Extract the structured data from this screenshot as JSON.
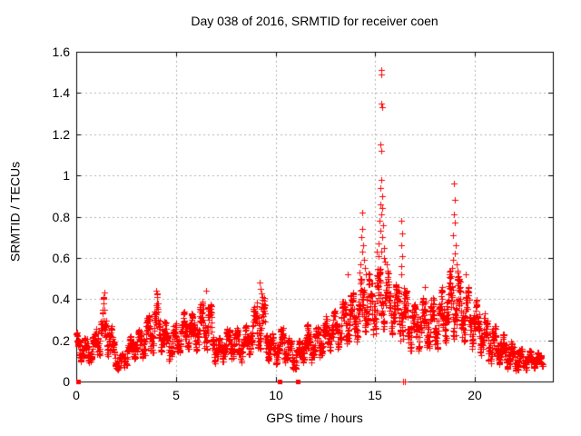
{
  "chart_data": {
    "type": "scatter",
    "title": "Day 038 of 2016, SRMTID for receiver coen",
    "xlabel": "GPS time / hours",
    "ylabel": "SRMTID / TECUs",
    "xlim": [
      0,
      23.9
    ],
    "ylim": [
      0,
      1.6
    ],
    "xticks": [
      0,
      5,
      10,
      15,
      20
    ],
    "yticks": [
      0,
      0.2,
      0.4,
      0.6,
      0.8,
      1,
      1.2,
      1.4,
      1.6
    ],
    "xtick_labels": [
      "0",
      "5",
      "10",
      "15",
      "20"
    ],
    "ytick_labels": [
      "0",
      "0.2",
      "0.4",
      "0.6",
      "0.8",
      "1",
      "1.2",
      "1.4",
      "1.6"
    ],
    "grid": true,
    "legend": "none",
    "marker": {
      "shape": "plus",
      "size": 7,
      "color": "#ff0000"
    },
    "colors": {
      "points": "#ff0000",
      "grid": "#b0b0b0",
      "axis": "#000000",
      "text": "#000000"
    },
    "sampling_per_hour": 120,
    "band_envelope": [
      [
        0.0,
        0.3,
        0.1,
        0.24
      ],
      [
        0.3,
        0.6,
        0.09,
        0.21
      ],
      [
        0.6,
        0.9,
        0.09,
        0.22
      ],
      [
        0.9,
        1.2,
        0.11,
        0.27
      ],
      [
        1.2,
        1.5,
        0.13,
        0.42
      ],
      [
        1.5,
        1.8,
        0.12,
        0.33
      ],
      [
        1.8,
        2.1,
        0.06,
        0.18
      ],
      [
        2.1,
        2.4,
        0.04,
        0.13
      ],
      [
        2.4,
        2.7,
        0.08,
        0.2
      ],
      [
        2.7,
        3.0,
        0.11,
        0.24
      ],
      [
        3.0,
        3.3,
        0.1,
        0.26
      ],
      [
        3.3,
        3.6,
        0.12,
        0.3
      ],
      [
        3.6,
        3.9,
        0.13,
        0.35
      ],
      [
        3.9,
        4.2,
        0.15,
        0.43
      ],
      [
        4.2,
        4.5,
        0.12,
        0.32
      ],
      [
        4.5,
        4.8,
        0.1,
        0.26
      ],
      [
        4.8,
        5.1,
        0.12,
        0.28
      ],
      [
        5.1,
        5.4,
        0.14,
        0.31
      ],
      [
        5.4,
        5.7,
        0.16,
        0.38
      ],
      [
        5.7,
        6.0,
        0.14,
        0.33
      ],
      [
        6.0,
        6.3,
        0.15,
        0.36
      ],
      [
        6.3,
        6.6,
        0.16,
        0.42
      ],
      [
        6.6,
        6.9,
        0.13,
        0.38
      ],
      [
        6.9,
        7.2,
        0.07,
        0.2
      ],
      [
        7.2,
        7.5,
        0.09,
        0.24
      ],
      [
        7.5,
        7.8,
        0.11,
        0.27
      ],
      [
        7.8,
        8.1,
        0.11,
        0.28
      ],
      [
        8.1,
        8.4,
        0.09,
        0.23
      ],
      [
        8.4,
        8.7,
        0.11,
        0.28
      ],
      [
        8.7,
        9.0,
        0.14,
        0.34
      ],
      [
        9.0,
        9.3,
        0.16,
        0.47
      ],
      [
        9.3,
        9.6,
        0.13,
        0.4
      ],
      [
        9.6,
        9.9,
        0.08,
        0.24
      ],
      [
        9.9,
        10.2,
        0.08,
        0.22
      ],
      [
        10.2,
        10.5,
        0.1,
        0.29
      ],
      [
        10.5,
        10.8,
        0.07,
        0.24
      ],
      [
        10.8,
        11.1,
        0.05,
        0.16
      ],
      [
        11.1,
        11.4,
        0.07,
        0.22
      ],
      [
        11.4,
        11.7,
        0.11,
        0.28
      ],
      [
        11.7,
        12.0,
        0.09,
        0.25
      ],
      [
        12.0,
        12.3,
        0.11,
        0.28
      ],
      [
        12.3,
        12.6,
        0.14,
        0.31
      ],
      [
        12.6,
        12.9,
        0.15,
        0.34
      ],
      [
        12.9,
        13.2,
        0.15,
        0.35
      ],
      [
        13.2,
        13.5,
        0.17,
        0.39
      ],
      [
        13.5,
        13.8,
        0.19,
        0.45
      ],
      [
        13.8,
        14.1,
        0.18,
        0.43
      ],
      [
        14.1,
        14.4,
        0.2,
        0.5
      ],
      [
        14.4,
        14.7,
        0.23,
        0.55
      ],
      [
        14.7,
        15.0,
        0.22,
        0.5
      ],
      [
        15.0,
        15.3,
        0.24,
        0.58
      ],
      [
        15.3,
        15.6,
        0.25,
        0.56
      ],
      [
        15.6,
        15.9,
        0.23,
        0.52
      ],
      [
        15.9,
        16.2,
        0.21,
        0.48
      ],
      [
        16.2,
        16.5,
        0.19,
        0.5
      ],
      [
        16.5,
        16.8,
        0.15,
        0.42
      ],
      [
        16.8,
        17.1,
        0.14,
        0.38
      ],
      [
        17.1,
        17.4,
        0.15,
        0.4
      ],
      [
        17.4,
        17.7,
        0.16,
        0.43
      ],
      [
        17.7,
        18.0,
        0.14,
        0.4
      ],
      [
        18.0,
        18.3,
        0.16,
        0.44
      ],
      [
        18.3,
        18.6,
        0.18,
        0.48
      ],
      [
        18.6,
        18.9,
        0.2,
        0.54
      ],
      [
        18.9,
        19.2,
        0.2,
        0.55
      ],
      [
        19.2,
        19.5,
        0.19,
        0.5
      ],
      [
        19.5,
        19.8,
        0.17,
        0.46
      ],
      [
        19.8,
        20.1,
        0.15,
        0.42
      ],
      [
        20.1,
        20.4,
        0.13,
        0.37
      ],
      [
        20.4,
        20.7,
        0.11,
        0.32
      ],
      [
        20.7,
        21.0,
        0.08,
        0.28
      ],
      [
        21.0,
        21.3,
        0.08,
        0.26
      ],
      [
        21.3,
        21.6,
        0.07,
        0.23
      ],
      [
        21.6,
        21.9,
        0.06,
        0.2
      ],
      [
        21.9,
        22.2,
        0.05,
        0.17
      ],
      [
        22.2,
        22.5,
        0.05,
        0.16
      ],
      [
        22.5,
        22.8,
        0.06,
        0.15
      ],
      [
        22.8,
        23.1,
        0.06,
        0.15
      ],
      [
        23.1,
        23.4,
        0.07,
        0.14
      ]
    ],
    "spike_points": [
      [
        15.28,
        1.51
      ],
      [
        15.31,
        1.49
      ],
      [
        15.3,
        1.35
      ],
      [
        15.33,
        1.33
      ],
      [
        15.27,
        1.15
      ],
      [
        15.31,
        1.12
      ],
      [
        15.29,
        0.98
      ],
      [
        15.26,
        0.94
      ],
      [
        15.33,
        0.9
      ],
      [
        15.24,
        0.86
      ],
      [
        15.36,
        0.84
      ],
      [
        15.3,
        0.81
      ],
      [
        15.21,
        0.78
      ],
      [
        15.38,
        0.76
      ],
      [
        15.25,
        0.73
      ],
      [
        15.33,
        0.7
      ],
      [
        15.18,
        0.67
      ],
      [
        15.41,
        0.65
      ],
      [
        15.28,
        0.63
      ],
      [
        15.15,
        0.61
      ],
      [
        15.45,
        0.6
      ],
      [
        15.08,
        0.63
      ],
      [
        15.5,
        0.58
      ],
      [
        15.55,
        0.57
      ],
      [
        14.33,
        0.82
      ],
      [
        14.36,
        0.74
      ],
      [
        14.3,
        0.7
      ],
      [
        14.38,
        0.66
      ],
      [
        14.34,
        0.63
      ],
      [
        14.42,
        0.59
      ],
      [
        14.27,
        0.57
      ],
      [
        14.46,
        0.55
      ],
      [
        14.22,
        0.53
      ],
      [
        14.52,
        0.52
      ],
      [
        16.31,
        0.78
      ],
      [
        16.34,
        0.72
      ],
      [
        16.3,
        0.66
      ],
      [
        16.36,
        0.61
      ],
      [
        16.32,
        0.56
      ],
      [
        16.28,
        0.52
      ],
      [
        18.95,
        0.96
      ],
      [
        18.97,
        0.88
      ],
      [
        18.93,
        0.81
      ],
      [
        19.0,
        0.77
      ],
      [
        18.9,
        0.71
      ],
      [
        19.03,
        0.66
      ],
      [
        18.97,
        0.62
      ],
      [
        18.87,
        0.59
      ],
      [
        19.06,
        0.57
      ],
      [
        19.11,
        0.53
      ],
      [
        18.83,
        0.55
      ],
      [
        19.16,
        0.51
      ],
      [
        18.79,
        0.51
      ],
      [
        19.21,
        0.49
      ],
      [
        9.18,
        0.48
      ],
      [
        9.22,
        0.45
      ],
      [
        13.62,
        0.52
      ],
      [
        17.5,
        0.46
      ],
      [
        19.52,
        0.52
      ],
      [
        6.52,
        0.44
      ],
      [
        4.02,
        0.44
      ],
      [
        1.42,
        0.43
      ]
    ],
    "zero_square_points": [
      [
        0.1,
        0
      ],
      [
        10.22,
        0
      ],
      [
        11.12,
        0
      ]
    ],
    "zero_plus_points": [
      [
        16.38,
        0
      ],
      [
        16.5,
        0
      ]
    ]
  }
}
